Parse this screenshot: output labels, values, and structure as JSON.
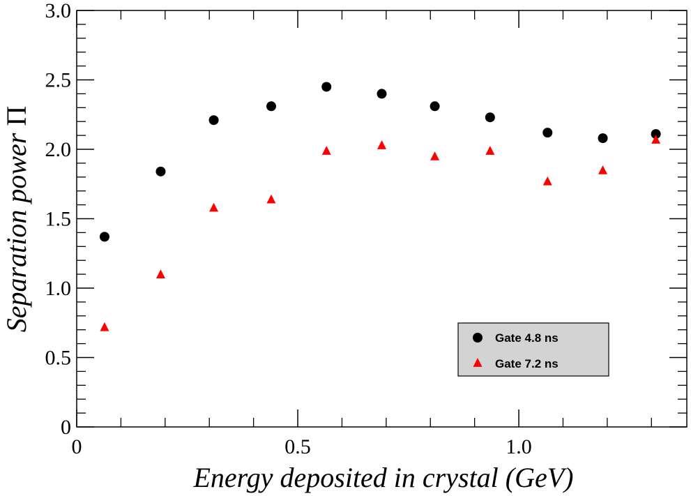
{
  "chart_data": {
    "type": "scatter",
    "xlabel": "Energy deposited in crystal (GeV)",
    "ylabel_text": "Separation power ",
    "ylabel_symbol": "Π",
    "xlim": [
      0,
      1.38
    ],
    "ylim": [
      0,
      3.0
    ],
    "x_ticks": [
      {
        "value": 0,
        "label": "0"
      },
      {
        "value": 0.5,
        "label": "0.5"
      },
      {
        "value": 1.0,
        "label": "1.0"
      }
    ],
    "y_ticks": [
      {
        "value": 0,
        "label": "0"
      },
      {
        "value": 0.5,
        "label": "0.5"
      },
      {
        "value": 1.0,
        "label": "1.0"
      },
      {
        "value": 1.5,
        "label": "1.5"
      },
      {
        "value": 2.0,
        "label": "2.0"
      },
      {
        "value": 2.5,
        "label": "2.5"
      },
      {
        "value": 3.0,
        "label": "3.0"
      }
    ],
    "x_minor_step": 0.1,
    "y_minor_step": 0.1,
    "grid": false,
    "legend_position": "bottom-right",
    "x": [
      0.063,
      0.19,
      0.31,
      0.44,
      0.565,
      0.69,
      0.81,
      0.935,
      1.065,
      1.19,
      1.31
    ],
    "series": [
      {
        "name": "Gate 4.8 ns",
        "marker": "circle",
        "color": "#000000",
        "values": [
          1.37,
          1.84,
          2.21,
          2.31,
          2.45,
          2.4,
          2.31,
          2.23,
          2.12,
          2.08,
          2.11
        ]
      },
      {
        "name": "Gate 7.2 ns",
        "marker": "triangle",
        "color": "#ff0000",
        "values": [
          0.72,
          1.1,
          1.58,
          1.64,
          1.99,
          2.03,
          1.95,
          1.99,
          1.77,
          1.85,
          2.07
        ]
      }
    ],
    "legend_background": "#d3d3d3"
  }
}
